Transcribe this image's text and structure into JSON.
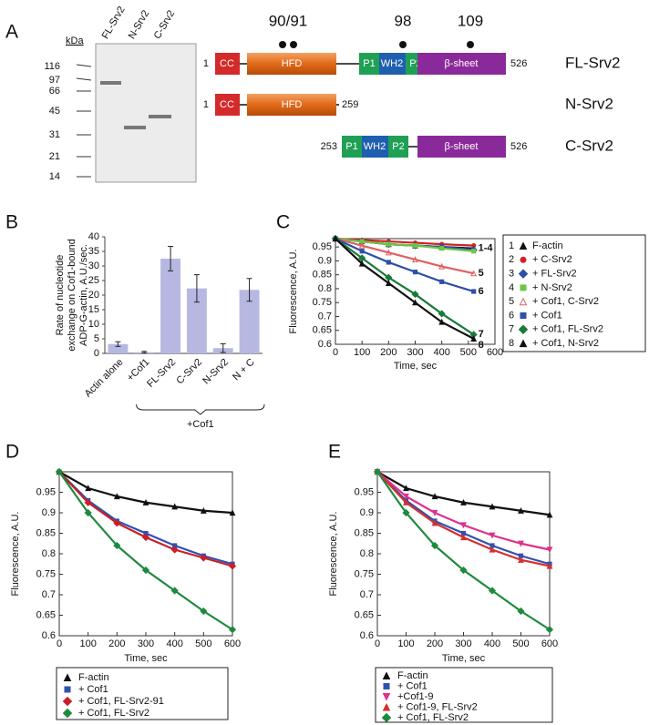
{
  "panel_labels": [
    "A",
    "B",
    "C",
    "D",
    "E"
  ],
  "gel": {
    "lanes": [
      "FL-Srv2",
      "N-Srv2",
      "C-Srv2"
    ],
    "unit": "kDa",
    "markers": [
      116,
      97,
      66,
      45,
      31,
      21,
      14
    ]
  },
  "domains": {
    "sites": [
      "90/91",
      "98",
      "109"
    ],
    "constructs": [
      {
        "name": "FL-Srv2",
        "start": 1,
        "end": 526,
        "blocks": [
          "CC",
          "HFD",
          "P1",
          "WH2",
          "P2",
          "β-sheet"
        ]
      },
      {
        "name": "N-Srv2",
        "start": 1,
        "end": 259,
        "blocks": [
          "CC",
          "HFD"
        ]
      },
      {
        "name": "C-Srv2",
        "start": 253,
        "end": 526,
        "blocks": [
          "P1",
          "WH2",
          "P2",
          "β-sheet"
        ]
      }
    ]
  },
  "chart_data": [
    {
      "type": "bar",
      "y_label": [
        "Rate of nucleotide",
        "exchange on Cof1-bound",
        "ADP-G-actin, A.U./sec."
      ],
      "categories": [
        "Actin alone",
        "+Cof1",
        "FL-Srv2",
        "C-Srv2",
        "N-Srv2",
        "N + C"
      ],
      "values": [
        3.2,
        0.4,
        32.5,
        22.3,
        1.8,
        21.8
      ],
      "errors": [
        0.8,
        0.3,
        4.2,
        4.7,
        1.5,
        3.9
      ],
      "color": "#b6b8e2",
      "ylim": [
        0,
        40
      ],
      "yticks": [
        0,
        5,
        10,
        15,
        20,
        25,
        30,
        35,
        40
      ],
      "group_label": "+Cof1"
    },
    {
      "type": "line",
      "x_label": "Time, sec",
      "y_label": "Fluorescence, A.U.",
      "x": [
        0,
        100,
        200,
        300,
        400,
        520
      ],
      "xlim": [
        0,
        600
      ],
      "xticks": [
        0,
        100,
        200,
        300,
        400,
        500,
        600
      ],
      "ylim": [
        0.6,
        0.98
      ],
      "yticks": [
        0.6,
        0.65,
        0.7,
        0.75,
        0.8,
        0.85,
        0.9,
        0.95
      ],
      "annotations": [
        "1-4",
        "5",
        "6",
        "7",
        "8"
      ],
      "series": [
        {
          "number": 1,
          "name": "F-actin",
          "color": "#111111",
          "marker": "triangle",
          "values": [
            0.98,
            0.97,
            0.96,
            0.955,
            0.95,
            0.945
          ]
        },
        {
          "number": 2,
          "name": "+ C-Srv2",
          "color": "#d42020",
          "marker": "circle",
          "values": [
            0.98,
            0.975,
            0.97,
            0.965,
            0.96,
            0.955
          ]
        },
        {
          "number": 3,
          "name": "+ FL-Srv2",
          "color": "#2e4fa8",
          "marker": "diamond",
          "values": [
            0.98,
            0.97,
            0.96,
            0.955,
            0.95,
            0.94
          ]
        },
        {
          "number": 4,
          "name": "+ N-Srv2",
          "color": "#6cc644",
          "marker": "square",
          "values": [
            0.98,
            0.97,
            0.96,
            0.955,
            0.945,
            0.935
          ]
        },
        {
          "number": 5,
          "name": "+ Cof1, C-Srv2",
          "color": "#e06060",
          "marker": "open-triangle",
          "values": [
            0.98,
            0.955,
            0.93,
            0.905,
            0.88,
            0.855
          ]
        },
        {
          "number": 6,
          "name": "+ Cof1",
          "color": "#2e4fa8",
          "marker": "square",
          "values": [
            0.98,
            0.935,
            0.895,
            0.86,
            0.825,
            0.79
          ]
        },
        {
          "number": 7,
          "name": "+ Cof1, FL-Srv2",
          "color": "#1a7a3a",
          "marker": "diamond",
          "values": [
            0.98,
            0.91,
            0.84,
            0.78,
            0.71,
            0.635
          ]
        },
        {
          "number": 8,
          "name": "+ Cof1, N-Srv2",
          "color": "#111111",
          "marker": "triangle",
          "values": [
            0.98,
            0.89,
            0.82,
            0.75,
            0.68,
            0.62
          ]
        }
      ]
    },
    {
      "type": "line",
      "x_label": "Time, sec",
      "y_label": "Fluorescence, A.U.",
      "x": [
        0,
        100,
        200,
        300,
        400,
        500,
        600
      ],
      "xlim": [
        0,
        600
      ],
      "xticks": [
        0,
        100,
        200,
        300,
        400,
        500,
        600
      ],
      "ylim": [
        0.6,
        1
      ],
      "yticks": [
        0.6,
        0.65,
        0.7,
        0.75,
        0.8,
        0.85,
        0.9,
        0.95
      ],
      "series": [
        {
          "name": "F-actin",
          "color": "#111111",
          "marker": "triangle",
          "values": [
            1,
            0.96,
            0.94,
            0.925,
            0.915,
            0.905,
            0.9
          ]
        },
        {
          "name": "+ Cof1",
          "color": "#3050b0",
          "marker": "square",
          "values": [
            1,
            0.93,
            0.88,
            0.85,
            0.82,
            0.795,
            0.775
          ]
        },
        {
          "name": "+ Cof1, FL-Srv2-91",
          "color": "#c8202a",
          "marker": "diamond",
          "values": [
            1,
            0.925,
            0.875,
            0.84,
            0.81,
            0.79,
            0.77
          ]
        },
        {
          "name": "+ Cof1, FL-Srv2",
          "color": "#1e8a3e",
          "marker": "diamond",
          "values": [
            1,
            0.9,
            0.82,
            0.76,
            0.71,
            0.66,
            0.615
          ]
        }
      ]
    },
    {
      "type": "line",
      "x_label": "Time, sec",
      "y_label": "Fluorescence, A.U.",
      "x": [
        0,
        100,
        200,
        300,
        400,
        500,
        600
      ],
      "xlim": [
        0,
        600
      ],
      "xticks": [
        0,
        100,
        200,
        300,
        400,
        500,
        600
      ],
      "ylim": [
        0.6,
        1
      ],
      "yticks": [
        0.6,
        0.65,
        0.7,
        0.75,
        0.8,
        0.85,
        0.9,
        0.95
      ],
      "series": [
        {
          "name": "F-actin",
          "color": "#111111",
          "marker": "triangle",
          "values": [
            1,
            0.96,
            0.94,
            0.925,
            0.915,
            0.905,
            0.895
          ]
        },
        {
          "name": "+ Cof1",
          "color": "#3050b0",
          "marker": "square",
          "values": [
            1,
            0.93,
            0.88,
            0.85,
            0.82,
            0.795,
            0.775
          ]
        },
        {
          "name": "+Cof1-9",
          "color": "#e0308a",
          "marker": "triangle-down",
          "values": [
            1,
            0.94,
            0.9,
            0.87,
            0.845,
            0.825,
            0.81
          ]
        },
        {
          "name": "+ Cof1-9, FL-Srv2",
          "color": "#d43030",
          "marker": "triangle",
          "values": [
            1,
            0.925,
            0.875,
            0.84,
            0.81,
            0.785,
            0.77
          ]
        },
        {
          "name": "+ Cof1, FL-Srv2",
          "color": "#1e8a3e",
          "marker": "diamond",
          "values": [
            1,
            0.9,
            0.82,
            0.76,
            0.71,
            0.66,
            0.615
          ]
        }
      ]
    }
  ]
}
